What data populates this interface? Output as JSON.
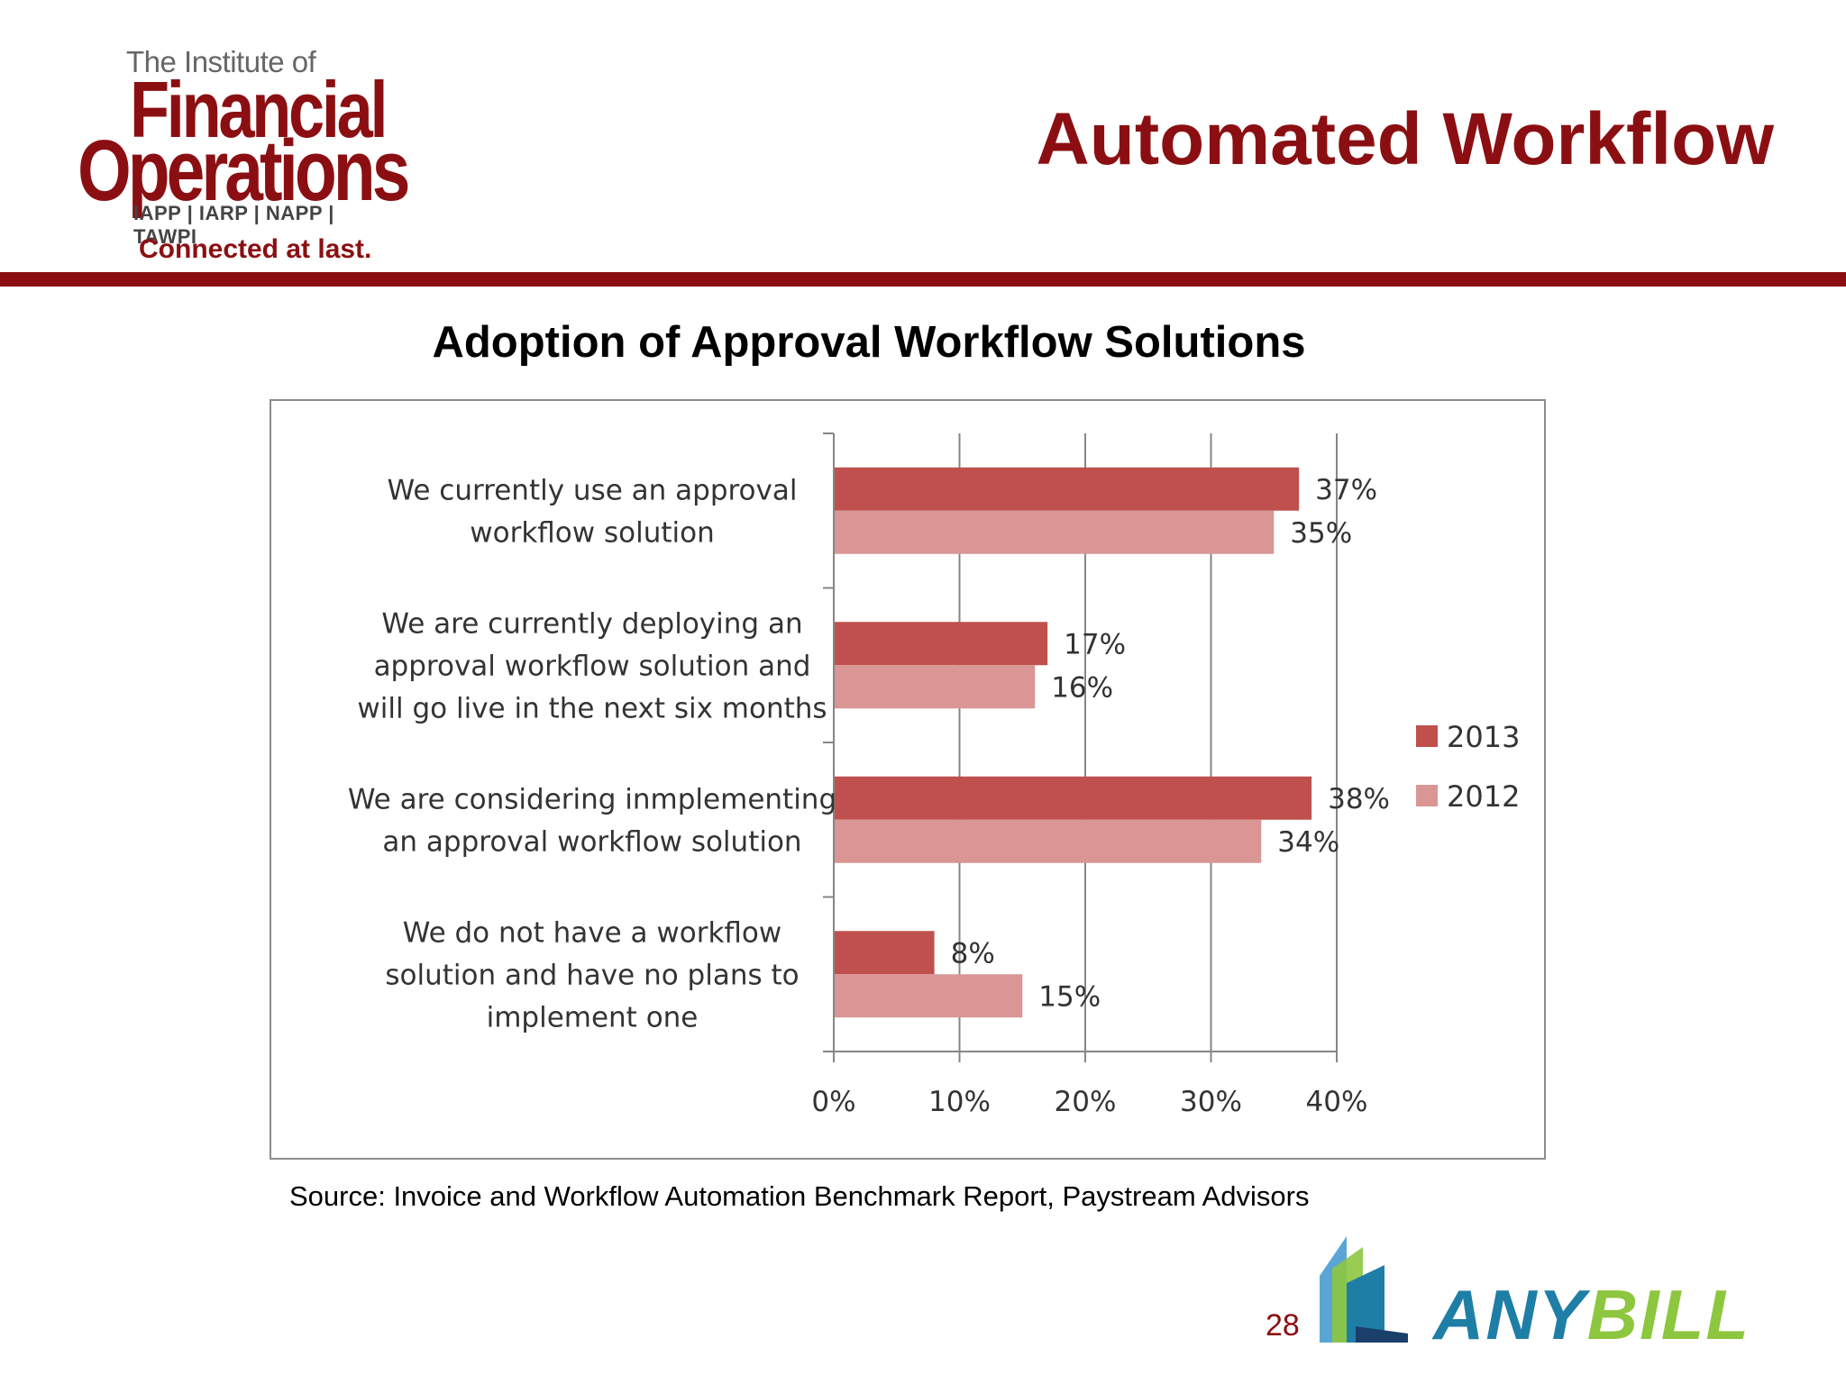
{
  "header": {
    "logo": {
      "line1": "The Institute of",
      "line2": "Financial",
      "line3": "Operations",
      "associations": "IAPP | IARP | NAPP | TAWPI",
      "tagline": "Connected at last."
    },
    "title": "Automated Workflow",
    "rule_color": "#8b0f12"
  },
  "chart_data": {
    "type": "bar",
    "orientation": "horizontal",
    "title": "Adoption of Approval Workflow Solutions",
    "categories": [
      [
        "We currently use  an approval",
        "workflow solution"
      ],
      [
        "We are currently deploying an",
        "approval workflow solution and",
        "will go live in the  next six months"
      ],
      [
        "We are considering inmplementing",
        "an approval workflow solution"
      ],
      [
        "We do  not  have a workflow",
        "solution and have no plans to",
        "implement one"
      ]
    ],
    "series": [
      {
        "name": "2013",
        "values": [
          37,
          17,
          38,
          8
        ],
        "labels": [
          "37%",
          "17%",
          "38%",
          "8%"
        ],
        "color": "#c0504d"
      },
      {
        "name": "2012",
        "values": [
          35,
          16,
          34,
          15
        ],
        "labels": [
          "35%",
          "16%",
          "34%",
          "15%"
        ],
        "color": "#d99694"
      }
    ],
    "x_ticks": [
      {
        "value": 0,
        "label": "0%"
      },
      {
        "value": 10,
        "label": "10%"
      },
      {
        "value": 20,
        "label": "20%"
      },
      {
        "value": 30,
        "label": "30%"
      },
      {
        "value": 40,
        "label": "40%"
      }
    ],
    "xlim": [
      0,
      40
    ],
    "grid": true,
    "legend_position": "right"
  },
  "source": "Source: Invoice and Workflow Automation Benchmark Report, Paystream Advisors",
  "page_number": "28",
  "brand": {
    "name_part1": "ANY",
    "name_part2": "BILL",
    "color_part1": "#1f7ea6",
    "color_part2": "#8dc63f"
  }
}
